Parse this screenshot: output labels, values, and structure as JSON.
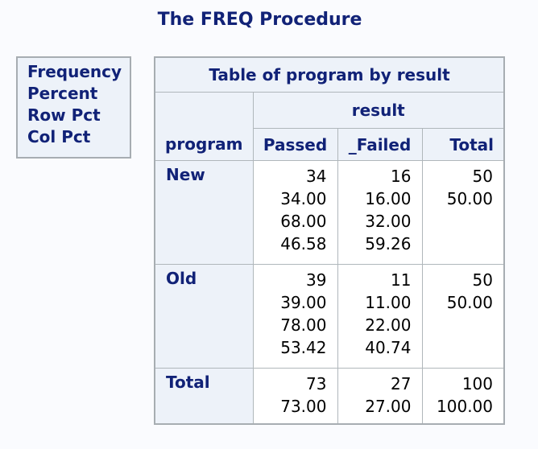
{
  "page": {
    "title": "The FREQ Procedure"
  },
  "legend": {
    "lines": [
      "Frequency",
      "Percent",
      "Row Pct",
      "Col Pct"
    ]
  },
  "crosstab": {
    "caption": "Table of program by result",
    "row_var": "program",
    "col_var": "result",
    "col_headers": [
      "Passed",
      "_Failed",
      "Total"
    ],
    "rows": [
      {
        "label": "New",
        "passed": [
          "34",
          "34.00",
          "68.00",
          "46.58"
        ],
        "failed": [
          "16",
          "16.00",
          "32.00",
          "59.26"
        ],
        "total": [
          "50",
          "50.00"
        ]
      },
      {
        "label": "Old",
        "passed": [
          "39",
          "39.00",
          "78.00",
          "53.42"
        ],
        "failed": [
          "11",
          "11.00",
          "22.00",
          "40.74"
        ],
        "total": [
          "50",
          "50.00"
        ]
      },
      {
        "label": "Total",
        "passed": [
          "73",
          "73.00"
        ],
        "failed": [
          "27",
          "27.00"
        ],
        "total": [
          "100",
          "100.00"
        ]
      }
    ]
  },
  "colors": {
    "heading_text": "#112277",
    "data_text": "#000000",
    "header_bg": "#edf2f9",
    "cell_bg": "#ffffff",
    "page_bg": "#fafbfe",
    "border": "#b0b7bb"
  }
}
